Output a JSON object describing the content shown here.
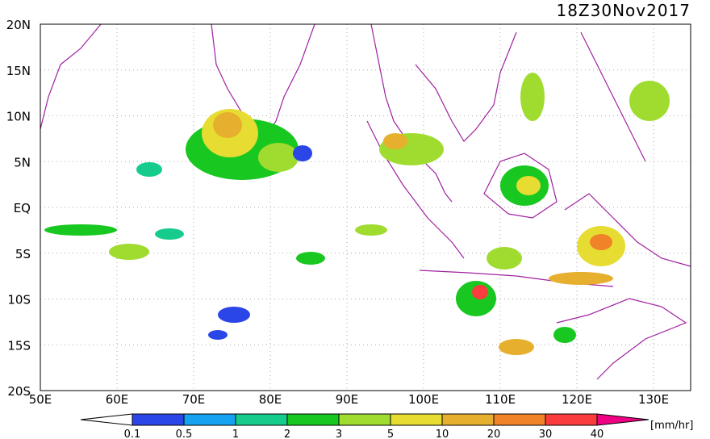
{
  "title": "18Z30Nov2017",
  "map": {
    "lon_labels": [
      "50E",
      "60E",
      "70E",
      "80E",
      "90E",
      "100E",
      "110E",
      "120E",
      "130E"
    ],
    "lat_labels": [
      "20N",
      "15N",
      "10N",
      "5N",
      "EQ",
      "5S",
      "10S",
      "15S",
      "20S"
    ]
  },
  "colorbar": {
    "labels": [
      "0.1",
      "0.5",
      "1",
      "2",
      "3",
      "5",
      "10",
      "20",
      "30",
      "40"
    ],
    "unit": "[mm/hr]",
    "colors": [
      "#ffffff",
      "#2b46e6",
      "#15a2f0",
      "#16cc8c",
      "#18c820",
      "#a0dc30",
      "#e6dc32",
      "#e6af2d",
      "#f08228",
      "#fa3c3c",
      "#f00082"
    ]
  }
}
